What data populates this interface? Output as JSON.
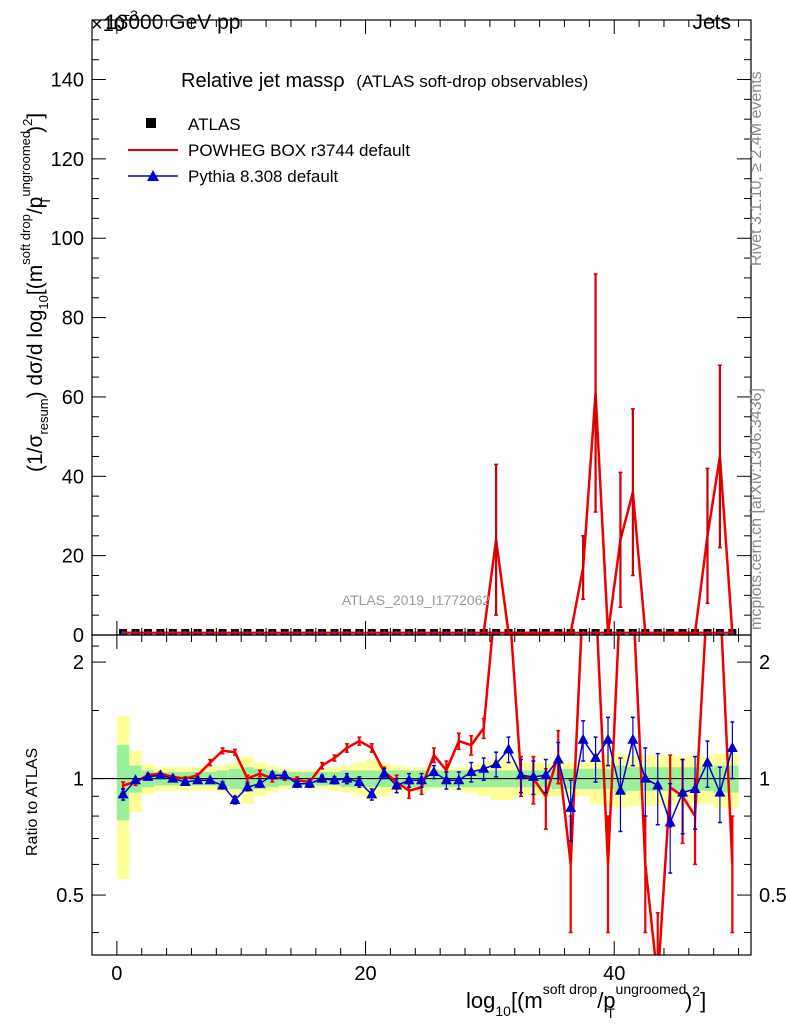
{
  "header": {
    "left": "13000 GeV pp",
    "right": "Jets",
    "exponent_prefix": "×10",
    "exponent": "−3"
  },
  "title": {
    "main": "Relative jet massρ",
    "sub": "(ATLAS soft-drop observables)"
  },
  "side_labels": {
    "rivet": "Rivet 3.1.10, ≥ 2.4M events",
    "mcplots": "mcplots.cern.ch [arXiv:1306.3436]"
  },
  "watermark": "ATLAS_2019_I1772062",
  "chart_data": [
    {
      "type": "line",
      "panel": "main",
      "ylabel": {
        "prefix": "(1/σ",
        "sub1": "resum",
        "mid": ") dσ/d log",
        "sub2": "10",
        "mid2": "[(m",
        "sup1": "soft drop",
        "mid3": "/p",
        "sup2": "ungroomed",
        "sub3": "T",
        "suffix": ")",
        "sup3": "2",
        "end": "]"
      },
      "ylim": [
        0,
        155
      ],
      "xlim": [
        -2,
        51
      ],
      "y_ticks": [
        0,
        20,
        40,
        60,
        80,
        100,
        120,
        140
      ],
      "y_scale_note": "×10−3",
      "legend": {
        "placement": "top-left",
        "entries": [
          {
            "label": "ATLAS",
            "color": "#000000",
            "marker": "square"
          },
          {
            "label": "POWHEG BOX r3744 default",
            "color": "#ee0000",
            "marker": "line"
          },
          {
            "label": "Pythia 8.308 default",
            "color": "#0000cc",
            "marker": "triangle"
          }
        ]
      },
      "series": [
        {
          "name": "ATLAS",
          "color": "#000000",
          "x": [
            0.5,
            1.5,
            2.5,
            3.5,
            4.5,
            5.5,
            6.5,
            7.5,
            8.5,
            9.5,
            10.5,
            11.5,
            12.5,
            13.5,
            14.5,
            15.5,
            16.5,
            17.5,
            18.5,
            19.5,
            20.5,
            21.5,
            22.5,
            23.5,
            24.5,
            25.5,
            26.5,
            27.5,
            28.5,
            29.5,
            30.5,
            31.5,
            32.5,
            33.5,
            34.5,
            35.5,
            36.5,
            37.5,
            38.5,
            39.5,
            40.5,
            41.5,
            42.5,
            43.5,
            44.5,
            45.5,
            46.5,
            47.5,
            48.5,
            49.5
          ],
          "values": [
            0.5,
            0.5,
            0.5,
            0.5,
            0.5,
            0.5,
            0.5,
            0.5,
            0.5,
            0.5,
            0.5,
            0.5,
            0.5,
            0.5,
            0.5,
            0.5,
            0.5,
            0.5,
            0.5,
            0.5,
            0.5,
            0.5,
            0.5,
            0.5,
            0.5,
            0.5,
            0.5,
            0.5,
            0.5,
            0.5,
            0.5,
            0.5,
            0.5,
            0.5,
            0.5,
            0.5,
            0.5,
            0.5,
            0.5,
            0.5,
            0.5,
            0.5,
            0.5,
            0.5,
            0.5,
            0.5,
            0.5,
            0.5,
            0.5,
            0.5
          ]
        },
        {
          "name": "POWHEG BOX r3744 default",
          "color": "#ee0000",
          "x": [
            29.5,
            30.5,
            31.5,
            36.5,
            37.5,
            38.5,
            39.5,
            40.5,
            41.5,
            42.5,
            46.5,
            47.5,
            48.5,
            49.5
          ],
          "values": [
            0.5,
            24,
            0.5,
            0.5,
            17,
            61,
            0.5,
            24,
            36,
            0.5,
            0.5,
            25,
            45,
            0.5
          ],
          "err": [
            0,
            19,
            0,
            0,
            8,
            30,
            0,
            17,
            21,
            0,
            0,
            17,
            23,
            0
          ]
        }
      ]
    },
    {
      "type": "line",
      "panel": "ratio",
      "ylabel": "Ratio to ATLAS",
      "xlabel": {
        "prefix": "log",
        "sub1": "10",
        "mid": "[(m",
        "sup1": "soft drop",
        "mid2": "/p",
        "sup2": "ungroomed",
        "sub2": "T",
        "suffix": ")",
        "sup3": "2",
        "end": "]"
      },
      "ylim": [
        0.35,
        2.35
      ],
      "xlim": [
        -2,
        51
      ],
      "x_ticks": [
        0,
        20,
        40
      ],
      "y_ticks": [
        0.5,
        1,
        2
      ],
      "reference_line": 1,
      "bands": {
        "x": [
          0.5,
          1.5,
          2.5,
          3.5,
          4.5,
          5.5,
          6.5,
          7.5,
          8.5,
          9.5,
          10.5,
          11.5,
          12.5,
          13.5,
          14.5,
          15.5,
          16.5,
          17.5,
          18.5,
          19.5,
          20.5,
          21.5,
          22.5,
          23.5,
          24.5,
          25.5,
          26.5,
          27.5,
          28.5,
          29.5,
          30.5,
          31.5,
          32.5,
          33.5,
          34.5,
          35.5,
          36.5,
          37.5,
          38.5,
          39.5,
          40.5,
          41.5,
          42.5,
          43.5,
          44.5,
          45.5,
          46.5,
          47.5,
          48.5,
          49.5
        ],
        "stat_half": [
          0.22,
          0.08,
          0.05,
          0.04,
          0.04,
          0.04,
          0.04,
          0.04,
          0.05,
          0.06,
          0.07,
          0.06,
          0.05,
          0.04,
          0.04,
          0.04,
          0.04,
          0.04,
          0.05,
          0.05,
          0.05,
          0.05,
          0.05,
          0.05,
          0.05,
          0.05,
          0.05,
          0.05,
          0.05,
          0.05,
          0.05,
          0.05,
          0.05,
          0.05,
          0.05,
          0.06,
          0.06,
          0.06,
          0.06,
          0.06,
          0.08,
          0.07,
          0.07,
          0.07,
          0.07,
          0.07,
          0.07,
          0.07,
          0.08,
          0.08
        ],
        "total_half": [
          0.45,
          0.18,
          0.09,
          0.07,
          0.07,
          0.07,
          0.07,
          0.07,
          0.08,
          0.1,
          0.14,
          0.1,
          0.08,
          0.06,
          0.05,
          0.05,
          0.06,
          0.07,
          0.08,
          0.1,
          0.12,
          0.1,
          0.08,
          0.07,
          0.07,
          0.06,
          0.06,
          0.07,
          0.08,
          0.1,
          0.12,
          0.12,
          0.1,
          0.1,
          0.1,
          0.1,
          0.1,
          0.1,
          0.14,
          0.15,
          0.16,
          0.15,
          0.15,
          0.15,
          0.15,
          0.14,
          0.14,
          0.14,
          0.16,
          0.16
        ]
      },
      "series": [
        {
          "name": "POWHEG BOX r3744 default",
          "color": "#ee0000",
          "x": [
            0.5,
            1.5,
            2.5,
            3.5,
            4.5,
            5.5,
            6.5,
            7.5,
            8.5,
            9.5,
            10.5,
            11.5,
            12.5,
            13.5,
            14.5,
            15.5,
            16.5,
            17.5,
            18.5,
            19.5,
            20.5,
            21.5,
            22.5,
            23.5,
            24.5,
            25.5,
            26.5,
            27.5,
            28.5,
            29.5,
            30.5,
            31.5,
            32.5,
            33.5,
            34.5,
            35.5,
            36.5,
            37.5,
            38.5,
            39.5,
            40.5,
            41.5,
            42.5,
            43.5,
            44.5,
            45.5,
            46.5,
            47.5,
            48.5,
            49.5
          ],
          "values": [
            0.96,
            0.98,
            1.02,
            1.03,
            1.01,
            1.0,
            1.02,
            1.1,
            1.18,
            1.17,
            1.0,
            1.03,
            1.0,
            1.01,
            0.99,
            0.98,
            1.08,
            1.13,
            1.2,
            1.25,
            1.2,
            1.04,
            0.98,
            0.93,
            0.95,
            1.15,
            1.05,
            1.25,
            1.22,
            1.35,
            3.0,
            3.0,
            1.02,
            1.0,
            0.9,
            1.15,
            0.6,
            3.0,
            3.0,
            0.6,
            3.0,
            3.0,
            0.6,
            0.3,
            0.95,
            0.9,
            0.8,
            3.0,
            3.0,
            0.6
          ],
          "err": [
            0.02,
            0.02,
            0.01,
            0.01,
            0.01,
            0.01,
            0.01,
            0.02,
            0.02,
            0.02,
            0.02,
            0.02,
            0.02,
            0.02,
            0.02,
            0.02,
            0.02,
            0.02,
            0.03,
            0.03,
            0.03,
            0.03,
            0.04,
            0.04,
            0.04,
            0.05,
            0.06,
            0.06,
            0.07,
            0.08,
            0,
            0,
            0.12,
            0.14,
            0.16,
            0.18,
            0.2,
            0,
            0,
            0.2,
            0,
            0,
            0.2,
            0.15,
            0.2,
            0.22,
            0.2,
            0,
            0,
            0.2
          ]
        },
        {
          "name": "Pythia 8.308 default",
          "color": "#0000cc",
          "x": [
            0.5,
            1.5,
            2.5,
            3.5,
            4.5,
            5.5,
            6.5,
            7.5,
            8.5,
            9.5,
            10.5,
            11.5,
            12.5,
            13.5,
            14.5,
            15.5,
            16.5,
            17.5,
            18.5,
            19.5,
            20.5,
            21.5,
            22.5,
            23.5,
            24.5,
            25.5,
            26.5,
            27.5,
            28.5,
            29.5,
            30.5,
            31.5,
            32.5,
            33.5,
            34.5,
            35.5,
            36.5,
            37.5,
            38.5,
            39.5,
            40.5,
            41.5,
            42.5,
            43.5,
            44.5,
            45.5,
            46.5,
            47.5,
            48.5,
            49.5
          ],
          "values": [
            0.91,
            0.99,
            1.01,
            1.02,
            1.0,
            0.98,
            0.99,
            0.99,
            0.96,
            0.88,
            0.95,
            0.97,
            1.02,
            1.02,
            0.97,
            0.97,
            1.0,
            0.99,
            1.0,
            0.98,
            0.91,
            1.03,
            0.96,
            0.99,
            0.99,
            1.04,
            0.99,
            0.99,
            1.04,
            1.06,
            1.09,
            1.19,
            1.02,
            1.01,
            1.02,
            1.12,
            0.84,
            1.26,
            1.13,
            1.26,
            0.93,
            1.26,
            1.0,
            0.96,
            0.77,
            0.92,
            0.94,
            1.1,
            0.92,
            1.2
          ],
          "err": [
            0.03,
            0.01,
            0.01,
            0.01,
            0.01,
            0.01,
            0.01,
            0.01,
            0.02,
            0.02,
            0.02,
            0.02,
            0.02,
            0.02,
            0.02,
            0.02,
            0.02,
            0.02,
            0.03,
            0.03,
            0.03,
            0.03,
            0.04,
            0.04,
            0.04,
            0.04,
            0.05,
            0.05,
            0.06,
            0.07,
            0.08,
            0.09,
            0.1,
            0.1,
            0.1,
            0.12,
            0.15,
            0.15,
            0.15,
            0.18,
            0.2,
            0.18,
            0.2,
            0.2,
            0.2,
            0.2,
            0.2,
            0.15,
            0.15,
            0.2
          ]
        }
      ]
    }
  ]
}
